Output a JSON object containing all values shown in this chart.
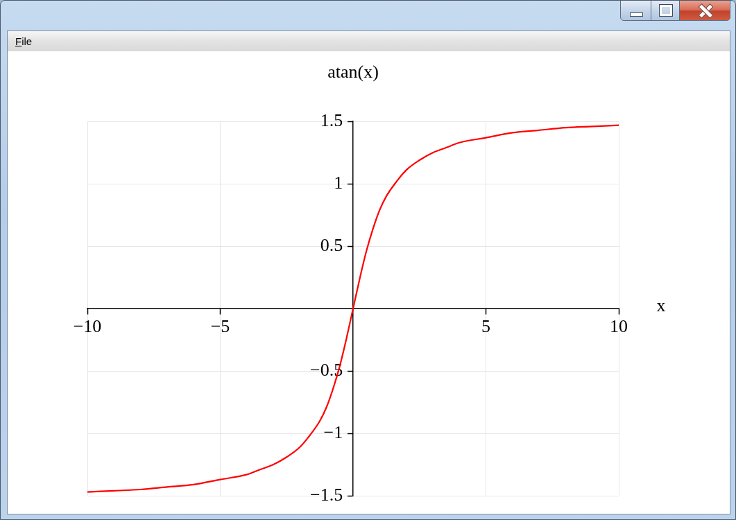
{
  "chart_data": {
    "type": "line",
    "title": "atan(x)",
    "xlabel": "x",
    "annotations": [
      "File"
    ],
    "x": [
      -10,
      -9,
      -8,
      -7,
      -6,
      -5,
      -4,
      -3.5,
      -3,
      -2.5,
      -2,
      -1.5,
      -1.25,
      -1,
      -0.75,
      -0.5,
      -0.25,
      0,
      0.25,
      0.5,
      0.75,
      1,
      1.25,
      1.5,
      2,
      2.5,
      3,
      3.5,
      4,
      5,
      6,
      7,
      8,
      9,
      10
    ],
    "series": [
      {
        "color": "#ff0000",
        "values": [
          -1.47,
          -1.46,
          -1.45,
          -1.43,
          -1.41,
          -1.37,
          -1.33,
          -1.29,
          -1.25,
          -1.19,
          -1.11,
          -0.98,
          -0.9,
          -0.79,
          -0.64,
          -0.46,
          -0.24,
          0,
          0.24,
          0.46,
          0.64,
          0.79,
          0.9,
          0.98,
          1.11,
          1.19,
          1.25,
          1.29,
          1.33,
          1.37,
          1.41,
          1.43,
          1.45,
          1.46,
          1.47
        ]
      }
    ],
    "xlim": [
      -10,
      10
    ],
    "ylim": [
      -1.5,
      1.5
    ],
    "xticks": [
      {
        "value": -10,
        "label": "−10"
      },
      {
        "value": -5,
        "label": "−5"
      },
      5,
      10
    ],
    "yticks": [
      {
        "value": -1.5,
        "label": "−1.5"
      },
      {
        "value": -1,
        "label": "−1"
      },
      {
        "value": -0.5,
        "label": "−0.5"
      },
      0.5,
      1,
      1.5
    ],
    "grid": true,
    "marker": "none",
    "line_style": "solid"
  }
}
